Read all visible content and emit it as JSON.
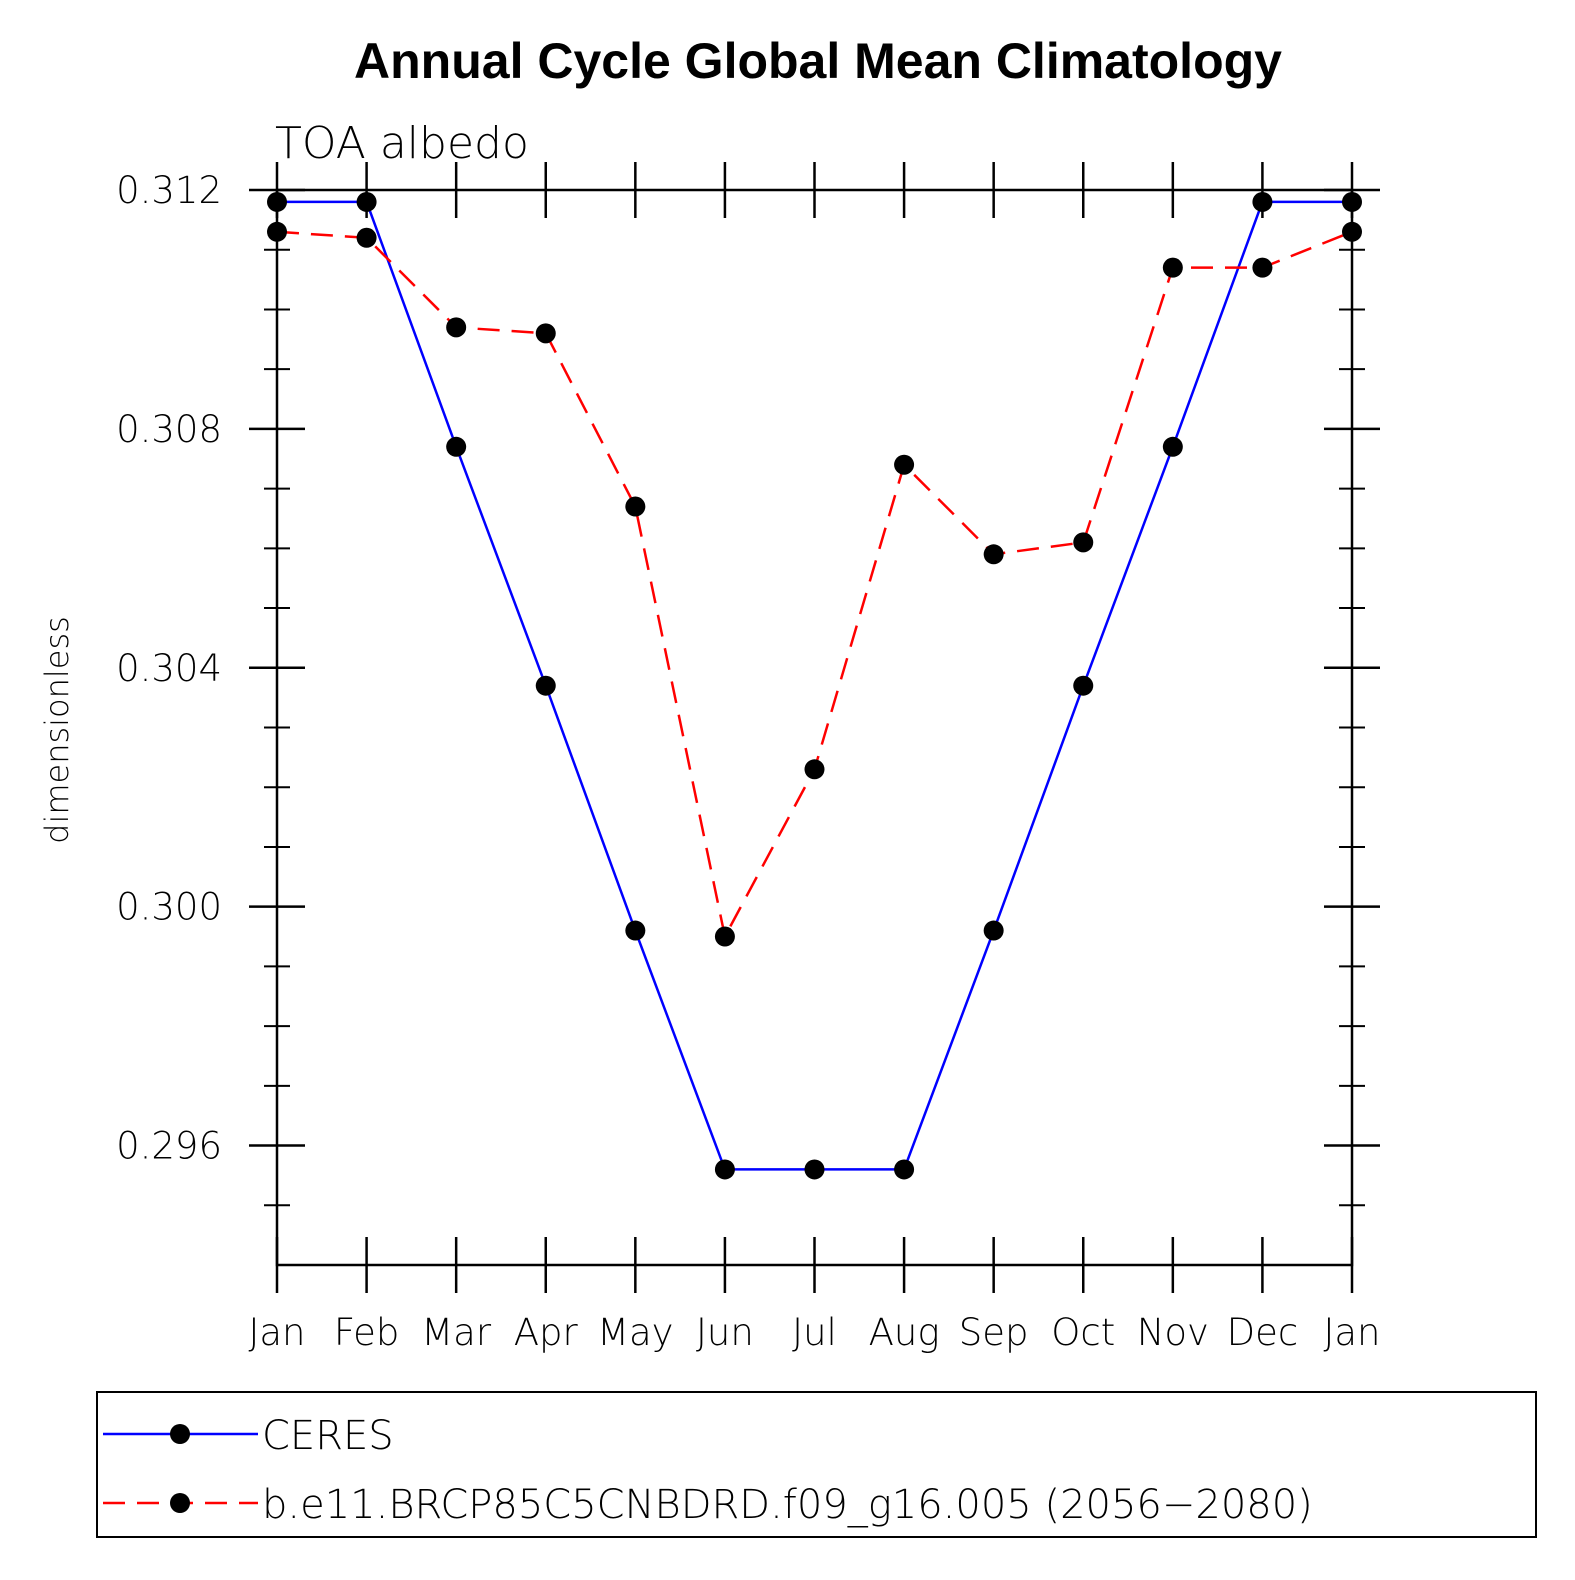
{
  "chart_data": {
    "type": "line",
    "title": "Annual Cycle Global Mean Climatology",
    "subtitle": "TOA albedo",
    "ylabel": "dimensionless",
    "xlabel": "",
    "categories": [
      "Jan",
      "Feb",
      "Mar",
      "Apr",
      "May",
      "Jun",
      "Jul",
      "Aug",
      "Sep",
      "Oct",
      "Nov",
      "Dec",
      "Jan"
    ],
    "ylim": [
      0.294,
      0.312
    ],
    "yticks": [
      "0.312",
      "0.308",
      "0.304",
      "0.300",
      "0.296"
    ],
    "ytick_values": [
      0.312,
      0.308,
      0.304,
      0.3,
      0.296
    ],
    "y_minor_step": 0.001,
    "legend_position": "bottom",
    "series": [
      {
        "name": "CERES",
        "color": "#0000ff",
        "line_style": "solid",
        "marker": "filled-circle",
        "values": [
          0.3118,
          0.3118,
          0.3077,
          0.3037,
          0.2996,
          0.2956,
          0.2956,
          0.2956,
          0.2996,
          0.3037,
          0.3077,
          0.3118,
          0.3118
        ]
      },
      {
        "name": "b.e11.BRCP85C5CNBDRD.f09_g16.005 (2056−2080)",
        "color": "#ff0000",
        "line_style": "dashed",
        "marker": "filled-circle",
        "values": [
          0.3113,
          0.3112,
          0.3097,
          0.3096,
          0.3067,
          0.2995,
          0.3023,
          0.3074,
          0.3059,
          0.3061,
          0.3107,
          0.3107,
          0.3113
        ]
      }
    ]
  }
}
